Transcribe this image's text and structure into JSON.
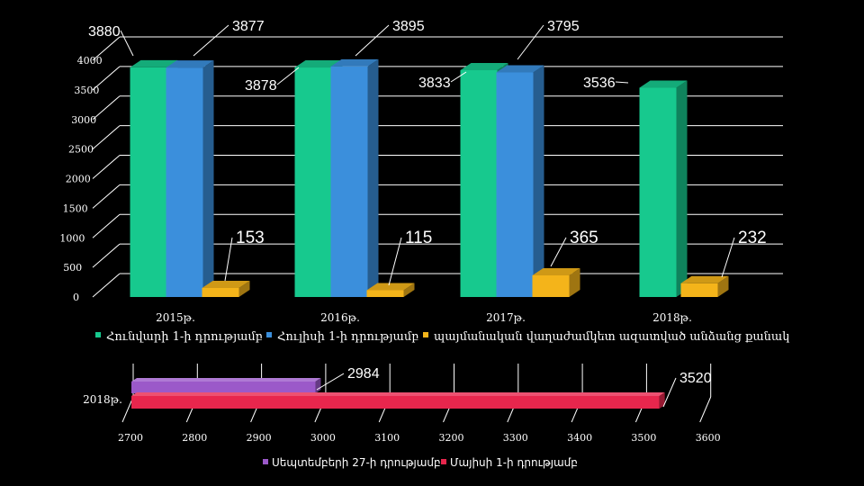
{
  "chart_data": [
    {
      "type": "bar",
      "categories": [
        "2015թ.",
        "2016թ.",
        "2017թ.",
        "2018թ."
      ],
      "series": [
        {
          "name": "Հունվարի 1-ի դրությամբ",
          "values": [
            3880,
            3878,
            3833,
            3536
          ],
          "color": "#17c98e"
        },
        {
          "name": "Հուլիսի 1-ի դրությամբ",
          "values": [
            3877,
            3895,
            3795,
            null
          ],
          "color": "#3b8fdc"
        },
        {
          "name": "պայմանական վաղաժամկետ ազատված անձանց քանակ",
          "values": [
            153,
            115,
            365,
            232
          ],
          "color": "#f4b41a"
        }
      ],
      "y_ticks": [
        "0",
        "500",
        "1000",
        "1500",
        "2000",
        "2500",
        "3000",
        "3500",
        "4000"
      ],
      "ylim": [
        0,
        4000
      ],
      "grid": true,
      "legend": "bottom"
    },
    {
      "type": "bar",
      "orientation": "horizontal",
      "categories": [
        "2018թ."
      ],
      "series": [
        {
          "name": "Սեպտեմբերի 27-ի դրությամբ",
          "values": [
            2984
          ],
          "color": "#9b59c9"
        },
        {
          "name": "Մայիսի 1-ի դրությամբ",
          "values": [
            3520
          ],
          "color": "#e8264d"
        }
      ],
      "x_ticks": [
        "2700",
        "2800",
        "2900",
        "3000",
        "3100",
        "3200",
        "3300",
        "3400",
        "3500",
        "3600"
      ],
      "xlim": [
        2700,
        3600
      ],
      "grid": true,
      "legend": "bottom"
    }
  ]
}
